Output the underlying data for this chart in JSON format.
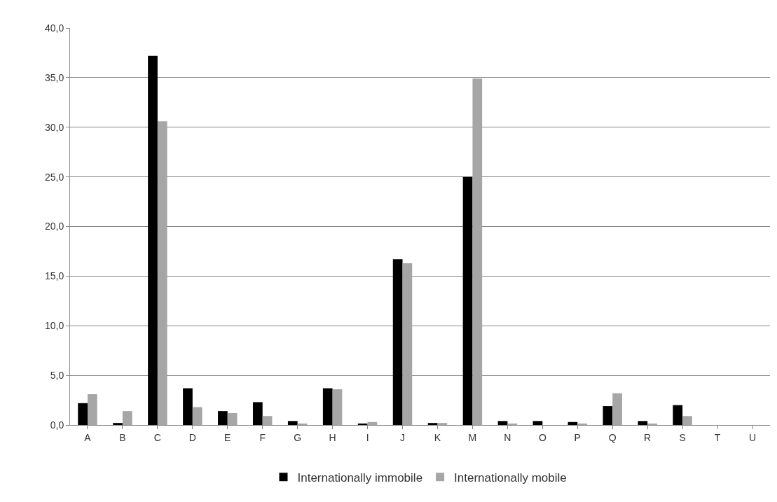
{
  "chart_data": {
    "type": "bar",
    "categories": [
      "A",
      "B",
      "C",
      "D",
      "E",
      "F",
      "G",
      "H",
      "I",
      "J",
      "K",
      "M",
      "N",
      "O",
      "P",
      "Q",
      "R",
      "S",
      "T",
      "U"
    ],
    "series": [
      {
        "name": "Internationally immobile",
        "color": "#000000",
        "values": [
          2.2,
          0.2,
          37.2,
          3.7,
          1.4,
          2.3,
          0.4,
          3.7,
          0.15,
          16.7,
          0.2,
          25.0,
          0.4,
          0.4,
          0.3,
          1.9,
          0.4,
          2.0,
          0,
          0
        ]
      },
      {
        "name": "Internationally mobile",
        "color": "#a6a6a6",
        "values": [
          3.1,
          1.4,
          30.6,
          1.8,
          1.2,
          0.9,
          0.15,
          3.6,
          0.3,
          16.3,
          0.2,
          34.9,
          0.15,
          0,
          0.15,
          3.2,
          0.15,
          0.9,
          0,
          0
        ]
      }
    ],
    "ylim": [
      0,
      40
    ],
    "yticks": [
      {
        "value": 0,
        "label": "0,0"
      },
      {
        "value": 5,
        "label": "5,0"
      },
      {
        "value": 10,
        "label": "10,0"
      },
      {
        "value": 15,
        "label": "15,0"
      },
      {
        "value": 20,
        "label": "20,0"
      },
      {
        "value": 25,
        "label": "25,0"
      },
      {
        "value": 30,
        "label": "30,0"
      },
      {
        "value": 35,
        "label": "35,0"
      },
      {
        "value": 40,
        "label": "40,0"
      }
    ],
    "grid": "y",
    "legend": "bottom"
  }
}
